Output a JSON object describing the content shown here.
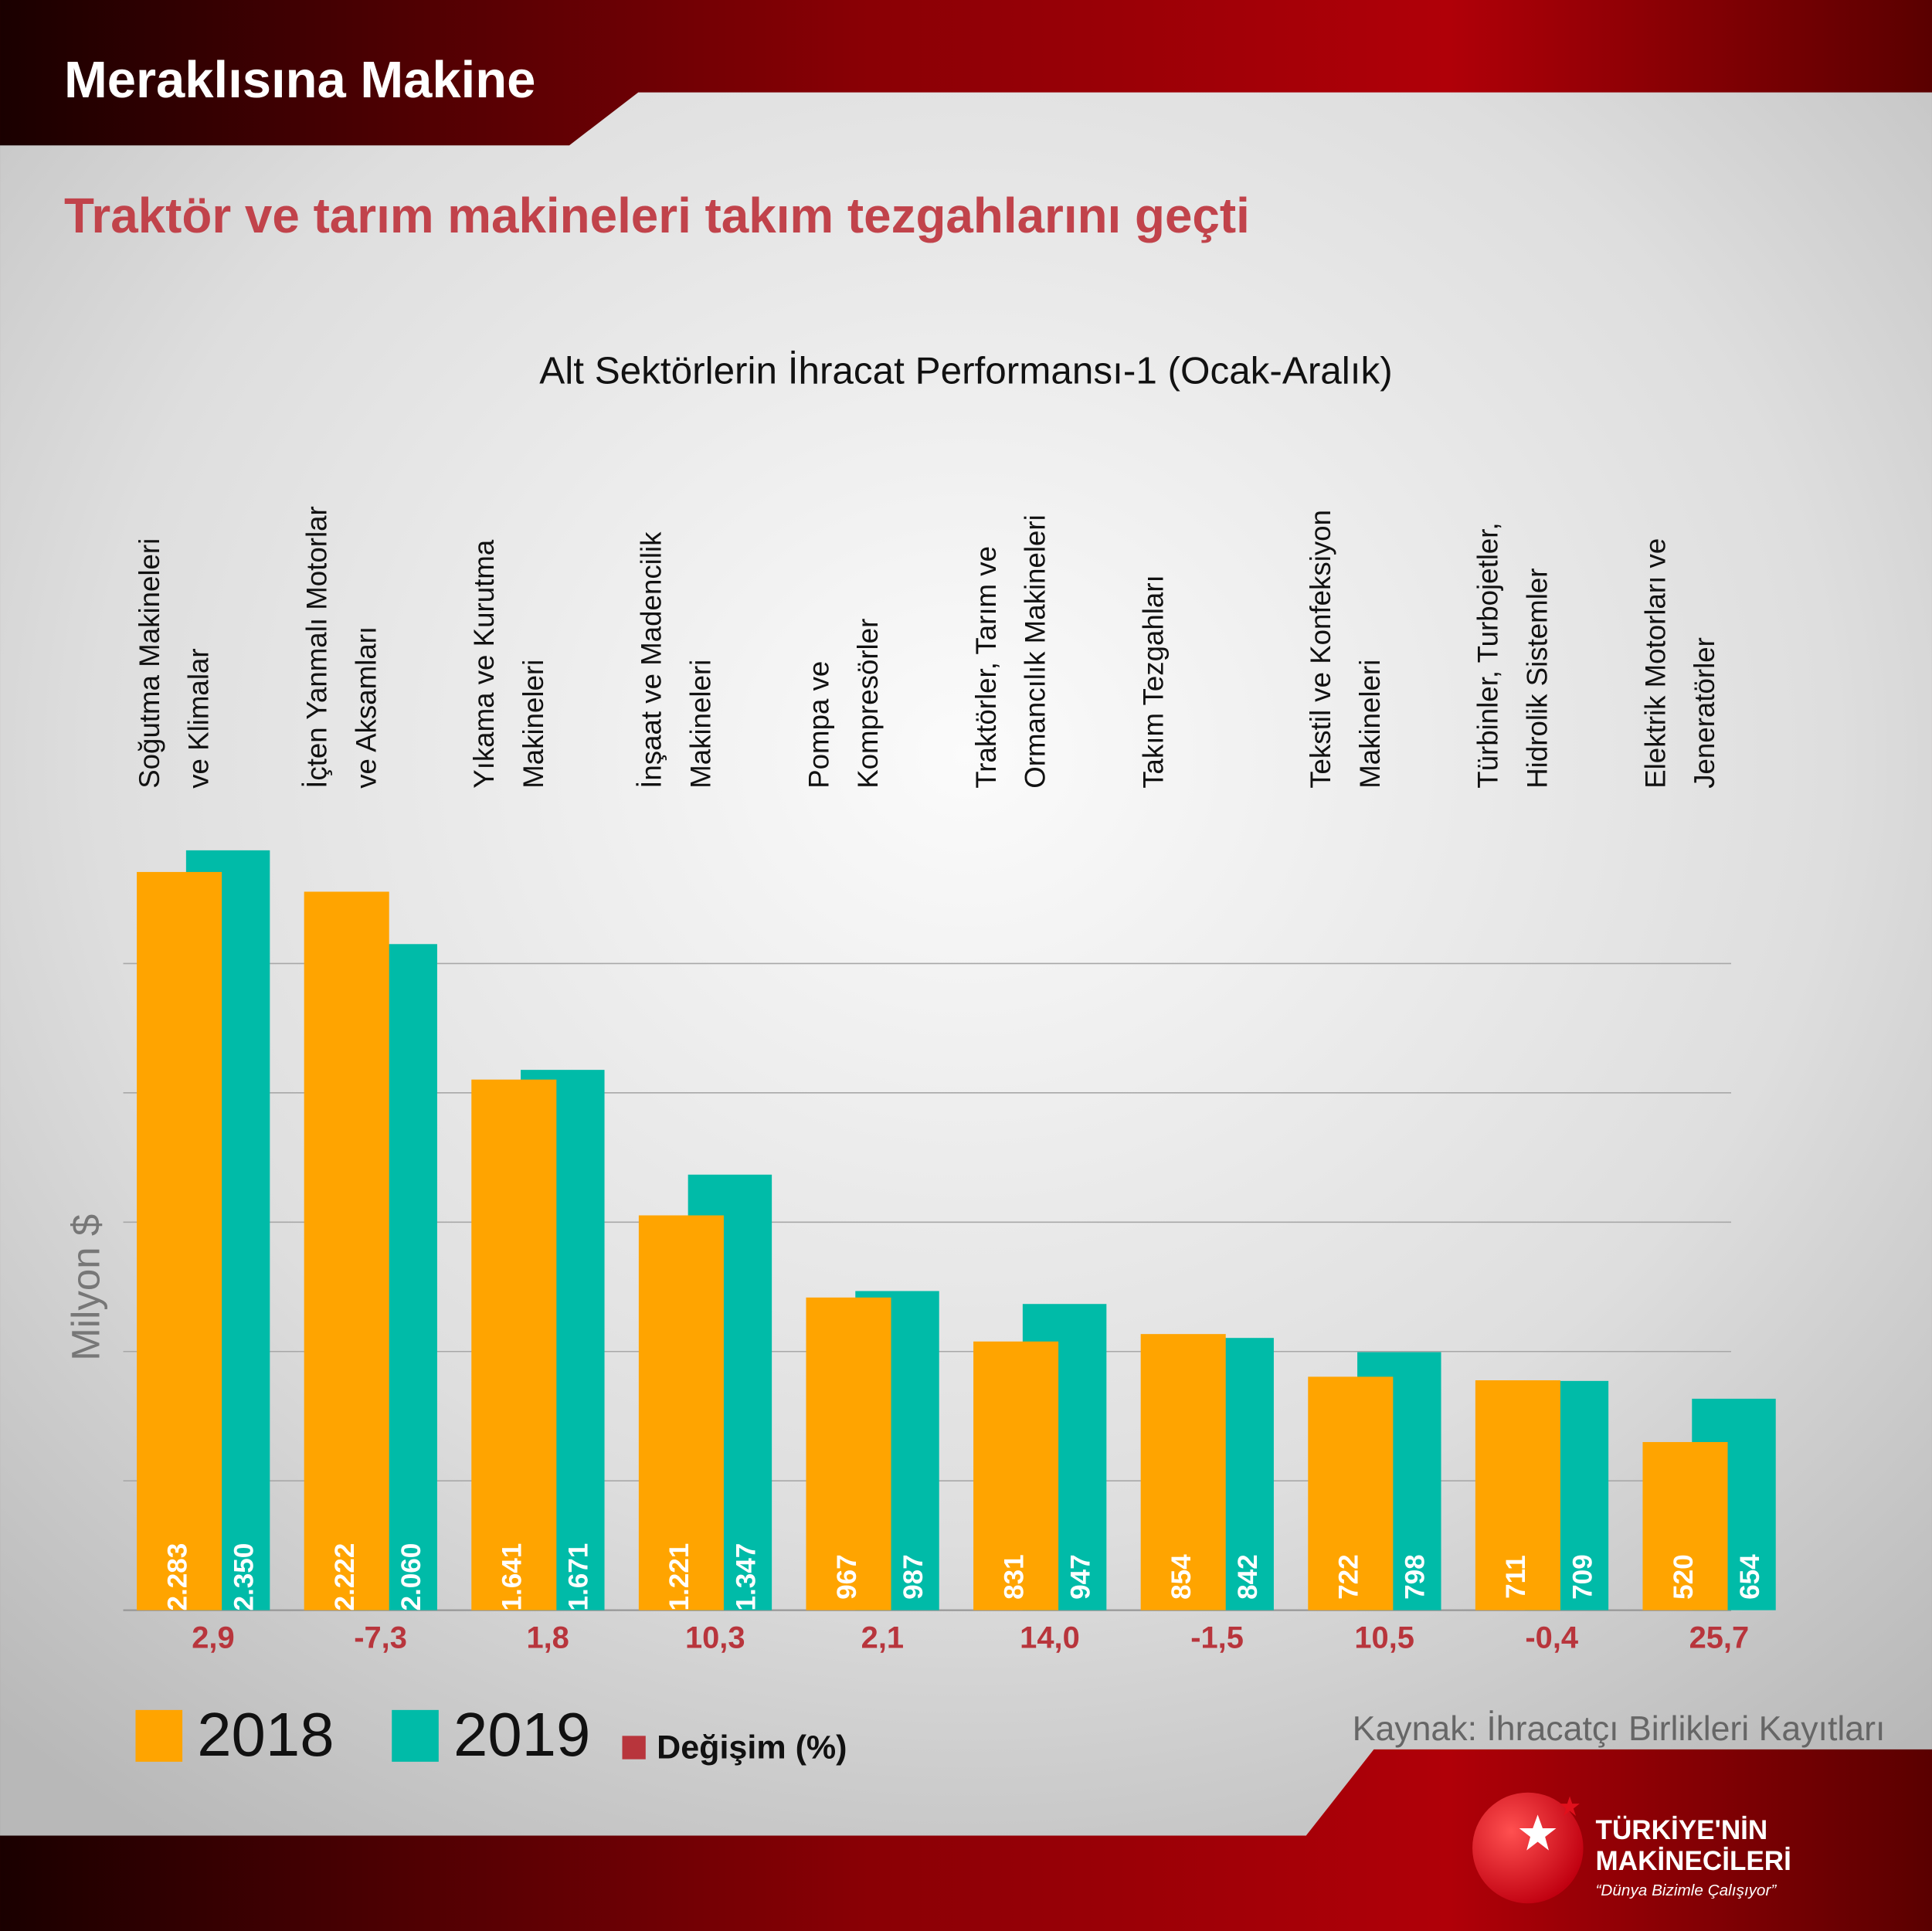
{
  "header": "Meraklısına Makine",
  "chart_data": {
    "type": "bar",
    "title": "Traktör ve tarım makineleri takım tezgahlarını geçti",
    "subtitle": "Alt Sektörlerin İhracat Performansı-1 (Ocak-Aralık)",
    "y_label": "Milyon $",
    "source": "Kaynak: İhracatçı Birlikleri Kayıtları",
    "categories": [
      [
        "Soğutma Makineleri",
        "ve Klimalar"
      ],
      [
        "İçten Yanmalı Motorlar",
        "ve Aksamları"
      ],
      [
        "Yıkama ve Kurutma",
        "Makineleri"
      ],
      [
        "İnşaat ve Madencilik",
        "Makineleri"
      ],
      [
        "Pompa ve",
        "Kompresörler"
      ],
      [
        "Traktörler, Tarım ve",
        "Ormancılık Makineleri"
      ],
      [
        "Takım Tezgahları"
      ],
      [
        "Tekstil ve Konfeksiyon",
        "Makineleri"
      ],
      [
        "Türbinler, Turbojetler,",
        "Hidrolik Sistemler"
      ],
      [
        "Elektrik Motorları ve",
        "Jeneratörler"
      ]
    ],
    "series": [
      {
        "name": "2018",
        "color": "#ffa400",
        "values": [
          2283,
          2222,
          1641,
          1221,
          967,
          831,
          854,
          722,
          711,
          520
        ],
        "value_labels": [
          "2.283",
          "2.222",
          "1.641",
          "1.221",
          "967",
          "831",
          "854",
          "722",
          "711",
          "520"
        ]
      },
      {
        "name": "2019",
        "color": "#00bba8",
        "values": [
          2350,
          2060,
          1671,
          1347,
          987,
          947,
          842,
          798,
          709,
          654
        ],
        "value_labels": [
          "2.350",
          "2.060",
          "1.671",
          "1.347",
          "987",
          "947",
          "842",
          "798",
          "709",
          "654"
        ]
      }
    ],
    "change": {
      "name": "Değişim (%)",
      "color": "#b8353c",
      "values": [
        2.9,
        -7.3,
        1.8,
        10.3,
        2.1,
        14.0,
        -1.5,
        10.5,
        -0.4,
        25.7
      ],
      "value_labels": [
        "2,9",
        "-7,3",
        "1,8",
        "10,3",
        "2,1",
        "14,0",
        "-1,5",
        "10,5",
        "-0,4",
        "25,7"
      ]
    },
    "ylim": [
      0,
      2500
    ],
    "yticks": [
      0,
      400,
      800,
      1200,
      1600,
      2000
    ],
    "grid": true
  },
  "branding": {
    "line1": "TÜRKİYE'NİN",
    "line2": "MAKİNECİLERİ",
    "tagline": "“Dünya Bizimle Çalışıyor”"
  }
}
